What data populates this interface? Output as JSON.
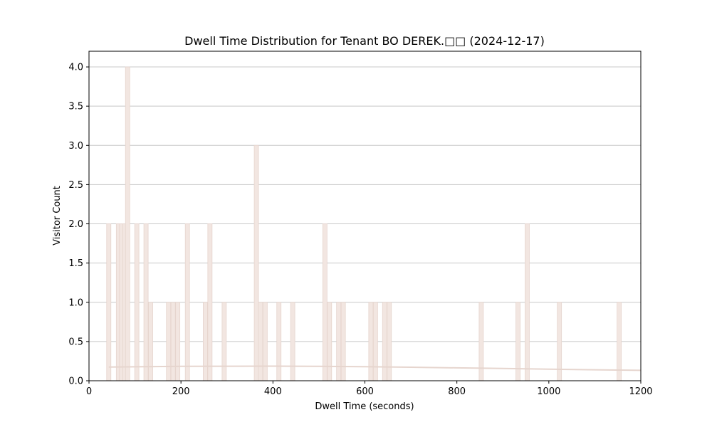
{
  "chart_data": {
    "type": "bar",
    "title": "Dwell Time Distribution for Tenant BO DEREK.□□ (2024-12-17)",
    "xlabel": "Dwell Time (seconds)",
    "ylabel": "Visitor Count",
    "xlim": [
      0,
      1200
    ],
    "ylim": [
      0,
      4.2
    ],
    "xticks": [
      "0",
      "200",
      "400",
      "600",
      "800",
      "1000",
      "1200"
    ],
    "yticks": [
      "0.0",
      "0.5",
      "1.0",
      "1.5",
      "2.0",
      "2.5",
      "3.0",
      "3.5",
      "4.0"
    ],
    "grid": "horizontal",
    "bar_color": "#f2e6e1",
    "bar_edge_color": "#e6d5ce",
    "line_color": "#e6d5ce",
    "bars": [
      {
        "x": 43,
        "y": 2
      },
      {
        "x": 64,
        "y": 2
      },
      {
        "x": 71,
        "y": 2
      },
      {
        "x": 78,
        "y": 2
      },
      {
        "x": 84,
        "y": 4
      },
      {
        "x": 104,
        "y": 2
      },
      {
        "x": 124,
        "y": 2
      },
      {
        "x": 134,
        "y": 1
      },
      {
        "x": 173,
        "y": 1
      },
      {
        "x": 183,
        "y": 1
      },
      {
        "x": 193,
        "y": 1
      },
      {
        "x": 214,
        "y": 2
      },
      {
        "x": 253,
        "y": 1
      },
      {
        "x": 263,
        "y": 2
      },
      {
        "x": 294,
        "y": 1
      },
      {
        "x": 364,
        "y": 3
      },
      {
        "x": 373,
        "y": 1
      },
      {
        "x": 383,
        "y": 1
      },
      {
        "x": 413,
        "y": 1
      },
      {
        "x": 443,
        "y": 1
      },
      {
        "x": 513,
        "y": 2
      },
      {
        "x": 523,
        "y": 1
      },
      {
        "x": 543,
        "y": 1
      },
      {
        "x": 553,
        "y": 1
      },
      {
        "x": 613,
        "y": 1
      },
      {
        "x": 623,
        "y": 1
      },
      {
        "x": 643,
        "y": 1
      },
      {
        "x": 653,
        "y": 1
      },
      {
        "x": 853,
        "y": 1
      },
      {
        "x": 933,
        "y": 1
      },
      {
        "x": 953,
        "y": 2
      },
      {
        "x": 1023,
        "y": 1
      },
      {
        "x": 1153,
        "y": 1
      }
    ],
    "density_curve": {
      "x": [
        43,
        100,
        200,
        300,
        400,
        500,
        600,
        700,
        800,
        900,
        1000,
        1100,
        1200
      ],
      "y": [
        0.175,
        0.178,
        0.183,
        0.185,
        0.186,
        0.184,
        0.179,
        0.172,
        0.164,
        0.156,
        0.148,
        0.14,
        0.132
      ]
    }
  }
}
